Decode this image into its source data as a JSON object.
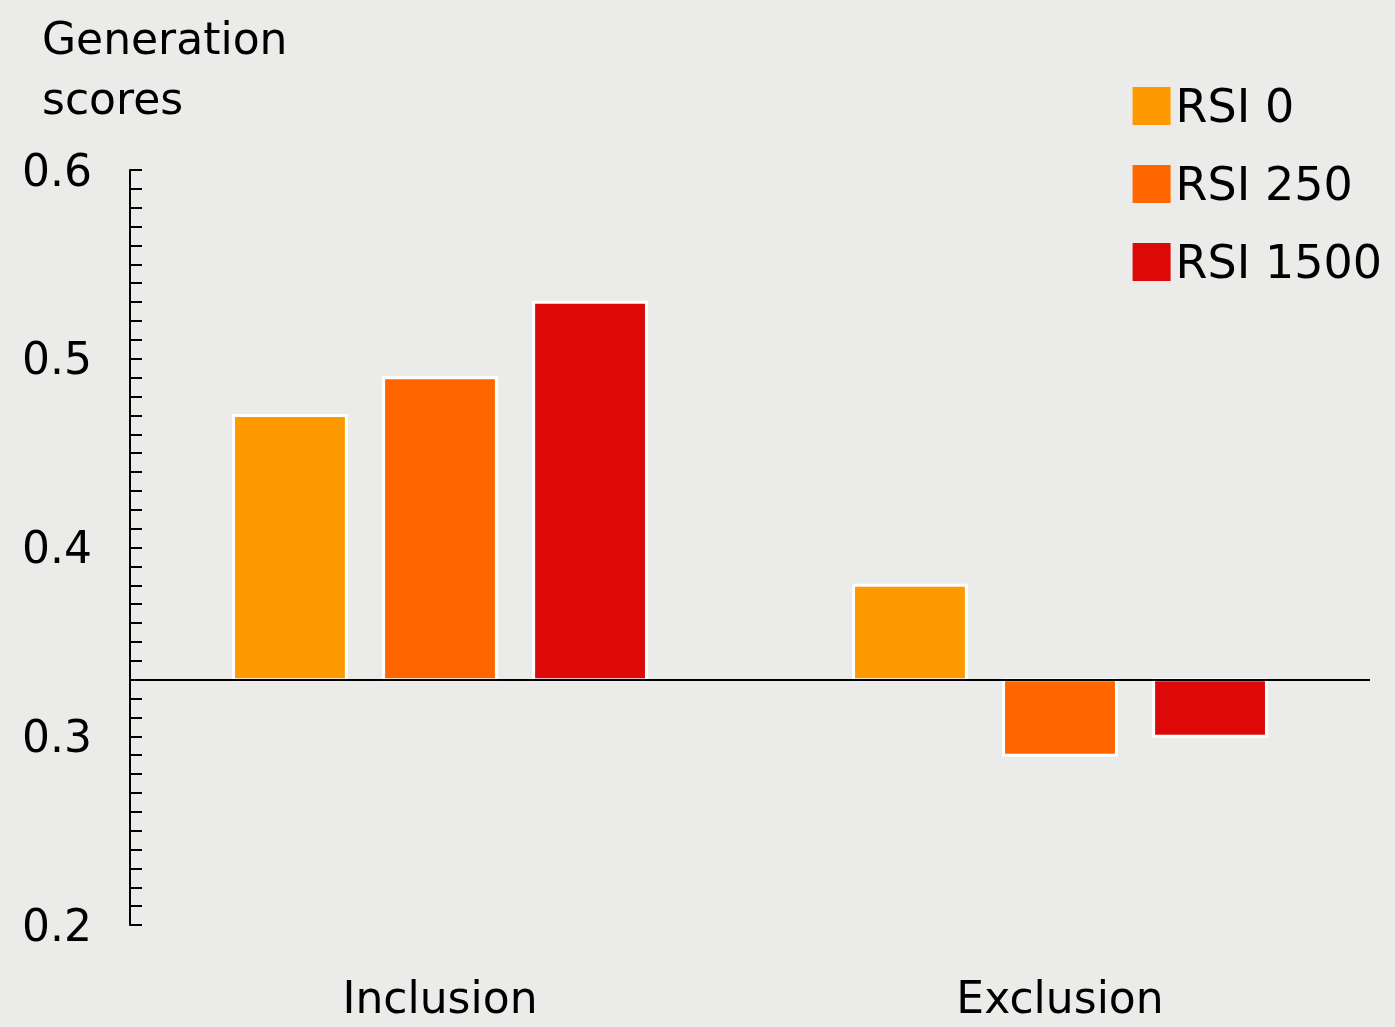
{
  "chart_data": {
    "type": "bar",
    "ylabel": "Generation scores",
    "categories": [
      "Inclusion",
      "Exclusion"
    ],
    "series": [
      {
        "name": "RSI 0",
        "color": "#ff9900",
        "base": [
          0.33,
          0.33
        ],
        "values": [
          0.14,
          0.05
        ]
      },
      {
        "name": "RSI 250",
        "color": "#ff6600",
        "base": [
          0.33,
          0.33
        ],
        "values": [
          0.16,
          -0.04
        ]
      },
      {
        "name": "RSI 1500",
        "color": "#dd0808",
        "base": [
          0.33,
          0.33
        ],
        "values": [
          0.2,
          -0.03
        ]
      }
    ],
    "ylim": [
      0.2,
      0.6
    ],
    "yticks": [
      0.2,
      {
        "value": 0.21,
        "label": null
      },
      {
        "value": 0.22,
        "label": null
      },
      {
        "value": 0.23,
        "label": null
      },
      {
        "value": 0.24,
        "label": null
      },
      {
        "value": 0.25,
        "label": null
      },
      {
        "value": 0.26,
        "label": null
      },
      {
        "value": 0.27,
        "label": null
      },
      {
        "value": 0.28,
        "label": null
      },
      {
        "value": 0.29,
        "label": null
      },
      0.3,
      {
        "value": 0.31,
        "label": null
      },
      {
        "value": 0.32,
        "label": null
      },
      {
        "value": 0.33,
        "label": null
      },
      {
        "value": 0.34,
        "label": null
      },
      {
        "value": 0.35,
        "label": null
      },
      {
        "value": 0.36,
        "label": null
      },
      {
        "value": 0.37,
        "label": null
      },
      {
        "value": 0.38,
        "label": null
      },
      {
        "value": 0.39,
        "label": null
      },
      0.4,
      {
        "value": 0.41,
        "label": null
      },
      {
        "value": 0.42,
        "label": null
      },
      {
        "value": 0.43,
        "label": null
      },
      {
        "value": 0.44,
        "label": null
      },
      {
        "value": 0.45,
        "label": null
      },
      {
        "value": 0.46,
        "label": null
      },
      {
        "value": 0.47,
        "label": null
      },
      {
        "value": 0.48,
        "label": null
      },
      {
        "value": 0.49,
        "label": null
      },
      0.5,
      {
        "value": 0.51,
        "label": null
      },
      {
        "value": 0.52,
        "label": null
      },
      {
        "value": 0.53,
        "label": null
      },
      {
        "value": 0.54,
        "label": null
      },
      {
        "value": 0.55,
        "label": null
      },
      {
        "value": 0.56,
        "label": null
      },
      {
        "value": 0.57,
        "label": null
      },
      {
        "value": 0.58,
        "label": null
      },
      {
        "value": 0.59,
        "label": null
      },
      0.6
    ],
    "ref_lines": [
      {
        "axis": "y",
        "value": 0.33,
        "color": "#000000"
      }
    ],
    "grid": false,
    "legend": "top right"
  }
}
